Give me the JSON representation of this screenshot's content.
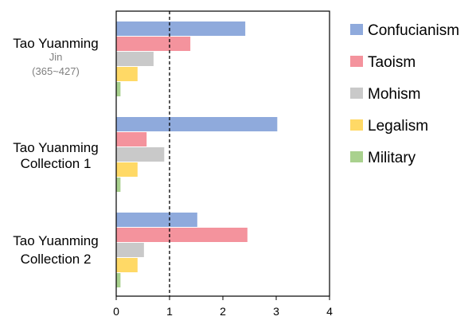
{
  "chart_data": {
    "type": "bar",
    "orientation": "horizontal",
    "categories": [
      {
        "lines": [
          "Tao Yuanming"
        ],
        "sub": [
          "Jin",
          "(365~427)"
        ]
      },
      {
        "lines": [
          "Tao Yuanming",
          "Collection 1"
        ],
        "sub": []
      },
      {
        "lines": [
          "Tao Yuanming",
          "Collection 2"
        ],
        "sub": []
      }
    ],
    "series": [
      {
        "name": "Confucianism",
        "color": "#8faadc",
        "values": [
          2.42,
          3.02,
          1.52
        ]
      },
      {
        "name": "Taoism",
        "color": "#f4939d",
        "values": [
          1.39,
          0.57,
          2.46
        ]
      },
      {
        "name": "Mohism",
        "color": "#c9c9c9",
        "values": [
          0.7,
          0.9,
          0.52
        ]
      },
      {
        "name": "Legalism",
        "color": "#ffd966",
        "values": [
          0.4,
          0.4,
          0.4
        ]
      },
      {
        "name": "Military",
        "color": "#a9d18e",
        "values": [
          0.08,
          0.08,
          0.08
        ]
      }
    ],
    "xlim": [
      0,
      4
    ],
    "xticks": [
      "0",
      "1",
      "2",
      "3",
      "4"
    ],
    "reference_line": {
      "x": 1,
      "style": "dashed"
    },
    "grid": false,
    "legend_position": "right"
  }
}
